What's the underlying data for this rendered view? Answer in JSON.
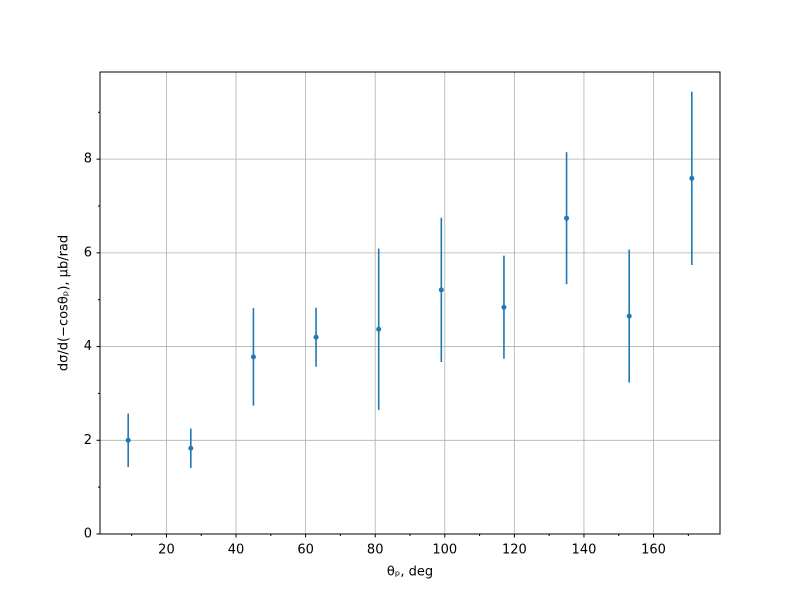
{
  "chart_data": {
    "type": "errorbar",
    "x_label": "θₚ, deg",
    "y_label": "dσ/d(−cosθₚ), μb/rad",
    "x": [
      9,
      27,
      45,
      63,
      81,
      99,
      117,
      135,
      153,
      171
    ],
    "values": [
      2.0,
      1.83,
      3.78,
      4.2,
      4.37,
      5.21,
      4.84,
      6.74,
      4.65,
      7.59
    ],
    "errors": [
      0.57,
      0.42,
      1.04,
      0.63,
      1.72,
      1.54,
      1.1,
      1.41,
      1.42,
      1.85
    ],
    "color": "#1f77b4",
    "xlim": [
      0.9,
      179.1
    ],
    "xticks": [
      20,
      40,
      60,
      80,
      100,
      120,
      140,
      160
    ],
    "minor_xticks": [
      10,
      30,
      50,
      70,
      90,
      110,
      130,
      150,
      170
    ],
    "ylim": [
      0,
      9.86
    ],
    "yticks": [
      0,
      2,
      4,
      6,
      8
    ],
    "minor_yticks": [
      1,
      3,
      5,
      7,
      9
    ],
    "grid": true
  }
}
